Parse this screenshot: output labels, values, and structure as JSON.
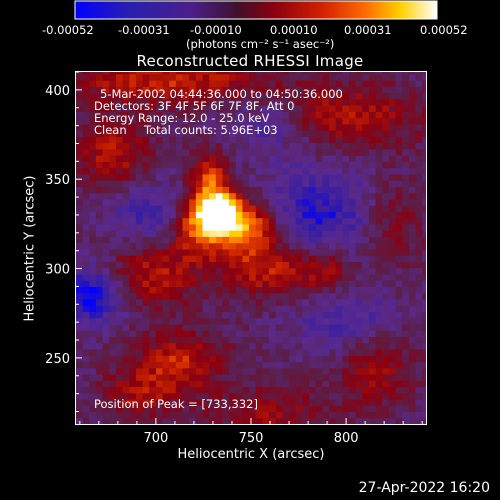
{
  "colorbar": {
    "tick_labels": [
      "-0.00052",
      "-0.00031",
      "-0.00010",
      "0.00010",
      "0.00031",
      "0.00052"
    ],
    "units": "(photons cm⁻² s⁻¹ asec⁻²)",
    "min": -0.00052,
    "max": 0.00052
  },
  "title": "Reconstructed RHESSI Image",
  "annotations": {
    "time_range": "5-Mar-2002 04:44:36.000 to 04:50:36.000",
    "detectors": "Detectors: 3F 4F 5F 6F 7F 8F, Att 0",
    "energy": "Energy Range: 12.0 - 25.0 keV",
    "clean_method": "Clean",
    "total_counts": "Total counts: 5.96E+03",
    "peak": "Position of Peak = [733,332]"
  },
  "footer_timestamp": "27-Apr-2022 16:20",
  "chart_data": {
    "type": "heatmap",
    "title": "Reconstructed RHESSI Image",
    "xlabel": "Heliocentric X (arcsec)",
    "ylabel": "Heliocentric Y (arcsec)",
    "x_ticks": [
      700,
      750,
      800
    ],
    "y_ticks": [
      250,
      300,
      350,
      400
    ],
    "xlim": [
      658,
      842
    ],
    "ylim": [
      213,
      410
    ],
    "colorscale": [
      "#0000ff",
      "#3a1f9e",
      "#5a2a8e",
      "#5a1f4a",
      "#8a0010",
      "#c82000",
      "#ff6a00",
      "#ffd000",
      "#ffffff"
    ],
    "peak": [
      733,
      332
    ],
    "blobs": [
      {
        "x": 733,
        "y": 332,
        "sx": 8,
        "sy": 9,
        "amp": 1.0
      },
      {
        "x": 748,
        "y": 323,
        "sx": 11,
        "sy": 10,
        "amp": 0.7
      },
      {
        "x": 722,
        "y": 325,
        "sx": 10,
        "sy": 12,
        "amp": 0.65
      },
      {
        "x": 728,
        "y": 352,
        "sx": 7,
        "sy": 10,
        "amp": 0.5
      },
      {
        "x": 760,
        "y": 300,
        "sx": 18,
        "sy": 11,
        "amp": 0.45
      },
      {
        "x": 700,
        "y": 298,
        "sx": 16,
        "sy": 13,
        "amp": 0.42
      },
      {
        "x": 678,
        "y": 365,
        "sx": 14,
        "sy": 14,
        "amp": 0.4
      },
      {
        "x": 708,
        "y": 405,
        "sx": 40,
        "sy": 9,
        "amp": 0.45
      },
      {
        "x": 800,
        "y": 385,
        "sx": 30,
        "sy": 12,
        "amp": 0.38
      },
      {
        "x": 712,
        "y": 248,
        "sx": 16,
        "sy": 12,
        "amp": 0.45
      },
      {
        "x": 760,
        "y": 220,
        "sx": 22,
        "sy": 10,
        "amp": 0.3
      },
      {
        "x": 815,
        "y": 245,
        "sx": 15,
        "sy": 14,
        "amp": 0.35
      },
      {
        "x": 690,
        "y": 230,
        "sx": 14,
        "sy": 10,
        "amp": 0.3
      },
      {
        "x": 790,
        "y": 300,
        "sx": 10,
        "sy": 10,
        "amp": 0.3
      },
      {
        "x": 825,
        "y": 325,
        "sx": 10,
        "sy": 16,
        "amp": 0.25
      },
      {
        "x": 665,
        "y": 285,
        "sx": 12,
        "sy": 10,
        "amp": -0.55
      },
      {
        "x": 785,
        "y": 330,
        "sx": 20,
        "sy": 18,
        "amp": -0.4
      },
      {
        "x": 700,
        "y": 330,
        "sx": 16,
        "sy": 14,
        "amp": -0.35
      },
      {
        "x": 800,
        "y": 270,
        "sx": 18,
        "sy": 14,
        "amp": -0.3
      },
      {
        "x": 760,
        "y": 380,
        "sx": 15,
        "sy": 12,
        "amp": -0.3
      }
    ]
  }
}
